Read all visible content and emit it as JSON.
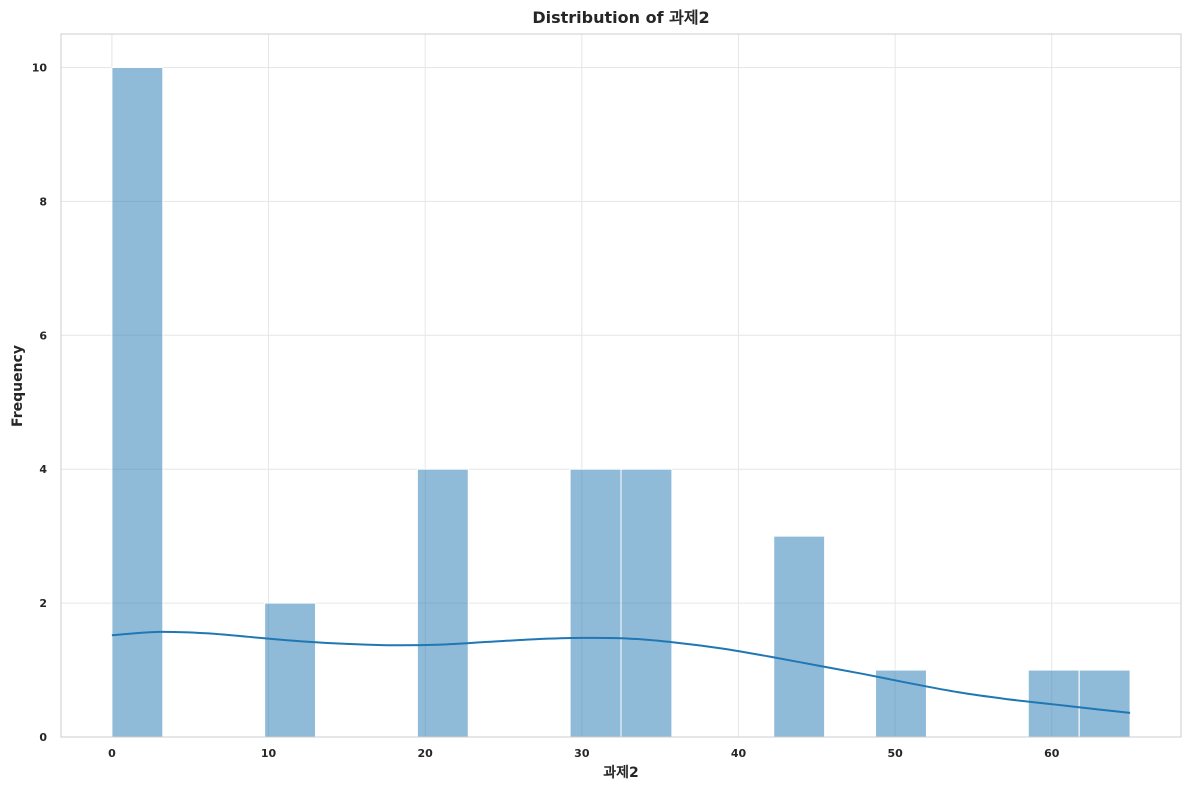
{
  "chart_data": {
    "type": "bar",
    "title": "Distribution of 과제2",
    "xlabel": "과제2",
    "ylabel": "Frequency",
    "xlim": [
      -3.25,
      68.25
    ],
    "ylim": [
      0,
      10.5
    ],
    "x_ticks": [
      0,
      10,
      20,
      30,
      40,
      50,
      60
    ],
    "y_ticks": [
      0,
      2,
      4,
      6,
      8,
      10
    ],
    "grid": true,
    "bins": [
      {
        "x0": 0.0,
        "x1": 3.25,
        "count": 10
      },
      {
        "x0": 3.25,
        "x1": 6.5,
        "count": 0
      },
      {
        "x0": 6.5,
        "x1": 9.75,
        "count": 0
      },
      {
        "x0": 9.75,
        "x1": 13.0,
        "count": 2
      },
      {
        "x0": 13.0,
        "x1": 16.25,
        "count": 0
      },
      {
        "x0": 16.25,
        "x1": 19.5,
        "count": 0
      },
      {
        "x0": 19.5,
        "x1": 22.75,
        "count": 4
      },
      {
        "x0": 22.75,
        "x1": 26.0,
        "count": 0
      },
      {
        "x0": 26.0,
        "x1": 29.25,
        "count": 0
      },
      {
        "x0": 29.25,
        "x1": 32.5,
        "count": 4
      },
      {
        "x0": 32.5,
        "x1": 35.75,
        "count": 4
      },
      {
        "x0": 35.75,
        "x1": 39.0,
        "count": 0
      },
      {
        "x0": 39.0,
        "x1": 42.25,
        "count": 0
      },
      {
        "x0": 42.25,
        "x1": 45.5,
        "count": 3
      },
      {
        "x0": 45.5,
        "x1": 48.75,
        "count": 0
      },
      {
        "x0": 48.75,
        "x1": 52.0,
        "count": 1
      },
      {
        "x0": 52.0,
        "x1": 55.25,
        "count": 0
      },
      {
        "x0": 55.25,
        "x1": 58.5,
        "count": 0
      },
      {
        "x0": 58.5,
        "x1": 61.75,
        "count": 1
      },
      {
        "x0": 61.75,
        "x1": 65.0,
        "count": 1
      }
    ],
    "kde": {
      "x": [
        0,
        3,
        6,
        9,
        12,
        15,
        18,
        21,
        24,
        27,
        30,
        33,
        36,
        39,
        42,
        45,
        48,
        51,
        54,
        57,
        60,
        63,
        65
      ],
      "y": [
        1.52,
        1.57,
        1.55,
        1.49,
        1.43,
        1.39,
        1.37,
        1.38,
        1.42,
        1.46,
        1.48,
        1.47,
        1.41,
        1.32,
        1.2,
        1.07,
        0.94,
        0.8,
        0.67,
        0.57,
        0.49,
        0.41,
        0.36
      ]
    },
    "colors": {
      "bar": "#1f77b4",
      "kde": "#1f77b4"
    }
  }
}
